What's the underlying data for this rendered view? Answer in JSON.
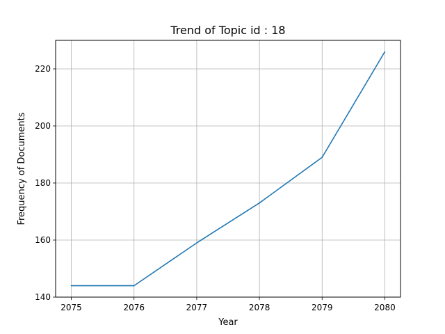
{
  "chart_data": {
    "type": "line",
    "title": "Trend of Topic id : 18",
    "xlabel": "Year",
    "ylabel": "Frequency of Documents",
    "x": [
      2075,
      2076,
      2077,
      2078,
      2079,
      2080
    ],
    "series": [
      {
        "values": [
          144,
          144,
          159,
          173,
          189,
          226
        ]
      }
    ],
    "xticks": [
      "2075",
      "2076",
      "2077",
      "2078",
      "2079",
      "2080"
    ],
    "yticks": [
      "140",
      "160",
      "180",
      "200",
      "220"
    ],
    "xlim": [
      2074.75,
      2080.25
    ],
    "ylim": [
      140,
      230
    ],
    "grid": true,
    "line_color": "#1f77b4",
    "grid_color": "#b0b0b0"
  }
}
